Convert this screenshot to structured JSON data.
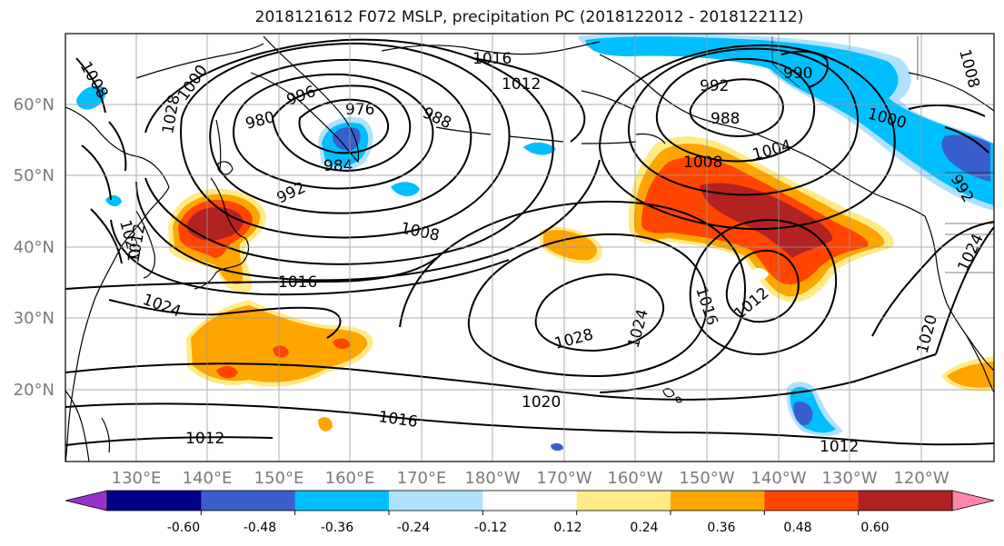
{
  "title": "2018121612 F072 MSLP, precipitation PC (2018122012 - 2018122112)",
  "map": {
    "lat_labels": [
      "60°N",
      "50°N",
      "40°N",
      "30°N",
      "20°N"
    ],
    "lon_labels": [
      "130°E",
      "140°E",
      "150°E",
      "160°E",
      "170°E",
      "180°W",
      "170°W",
      "160°W",
      "150°W",
      "140°W",
      "130°W",
      "120°W"
    ],
    "isobar_labels": [
      "1016",
      "1012",
      "1008",
      "1000",
      "996",
      "992",
      "988",
      "984",
      "980",
      "976",
      "1000",
      "1004",
      "1008",
      "1012",
      "1016",
      "1020",
      "1024",
      "1028",
      "992",
      "1008",
      "1012",
      "1016",
      "1020",
      "1024",
      "1012",
      "1016",
      "1020",
      "1024",
      "1028",
      "1012",
      "988",
      "990",
      "1008",
      "992"
    ]
  },
  "colorbar": {
    "colors": [
      "#9932cc",
      "#00008b",
      "#3a5fcd",
      "#00bfff",
      "#b0e2ff",
      "#ffffff",
      "#ffea85",
      "#ffa500",
      "#ff4500",
      "#b22222",
      "#ff88aa"
    ],
    "tick_labels": [
      "-0.60",
      "-0.48",
      "-0.36",
      "-0.24",
      "-0.12",
      "0.12",
      "0.24",
      "0.36",
      "0.48",
      "0.60"
    ]
  },
  "colors": {
    "ocean": "#ffffff",
    "coast": "#000000",
    "grid": "#9a9a9a",
    "positive_light": "#ffea85",
    "positive_mid": "#ffa500",
    "positive_strong": "#ff4500",
    "positive_max": "#b22222",
    "negative_light": "#b0e2ff",
    "negative_mid": "#00bfff",
    "negative_strong": "#3a5fcd"
  }
}
